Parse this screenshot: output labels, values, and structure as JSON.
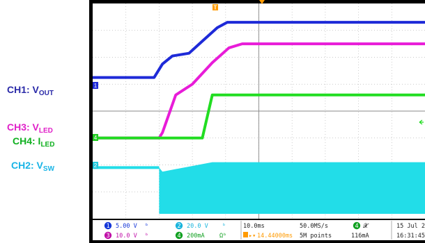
{
  "labels": {
    "ch1": {
      "main": "CH1: V",
      "sub": "OUT",
      "color": "#2a2aa8"
    },
    "ch3": {
      "main": "CH3: V",
      "sub": "LED",
      "color": "#e020c8"
    },
    "ch4": {
      "main": "CH4: I",
      "sub": "LED",
      "color": "#10b020"
    },
    "ch2": {
      "main": "CH2: V",
      "sub": "SW",
      "color": "#19b4e6"
    }
  },
  "markers": {
    "trigger": "T",
    "ch1": "1",
    "ch4": "4",
    "ch2": "2"
  },
  "status": {
    "ch1": {
      "num": "1",
      "scale": "5.00 V",
      "color": "#1436d8"
    },
    "ch3": {
      "num": "3",
      "scale": "10.0 V",
      "color": "#c010a8"
    },
    "ch2": {
      "num": "2",
      "scale": "20.0 V",
      "color": "#18b4dc"
    },
    "ch4": {
      "num": "4",
      "scale": "200mA",
      "color": "#10a020"
    },
    "timebase": "10.0ms",
    "trig_offset": "14.44000ms",
    "sample_rate": "50.0MS/s",
    "record": "5M points",
    "meas_num": "4",
    "meas_value": "116mA",
    "date": "15 Jul  2",
    "time": "16:31:45"
  },
  "chart_data": {
    "type": "line",
    "xlim": [
      0,
      10
    ],
    "ylim": [
      0,
      8
    ],
    "grid": true,
    "series": [
      {
        "color": "#1e2ad8",
        "x": [
          0,
          1.85,
          2.1,
          2.4,
          2.9,
          3.3,
          3.75,
          4.05,
          10
        ],
        "y": [
          5.25,
          5.25,
          5.75,
          6.05,
          6.15,
          6.6,
          7.1,
          7.3,
          7.3
        ]
      },
      {
        "color": "#e81cd8",
        "x": [
          0,
          2.0,
          2.1,
          2.5,
          3.0,
          3.6,
          4.1,
          4.5,
          10
        ],
        "y": [
          3.0,
          3.0,
          3.2,
          4.6,
          5.0,
          5.8,
          6.35,
          6.5,
          6.5
        ]
      },
      {
        "color": "#22dd22",
        "x": [
          0,
          3.3,
          3.6,
          10
        ],
        "y": [
          3.0,
          3.0,
          4.6,
          4.6
        ]
      },
      {
        "color": "#22dde8",
        "x": [
          0,
          2.0,
          2.1,
          3.6,
          10
        ],
        "y": [
          1.9,
          1.9,
          1.75,
          2.1,
          2.1
        ],
        "fill": true
      }
    ]
  }
}
